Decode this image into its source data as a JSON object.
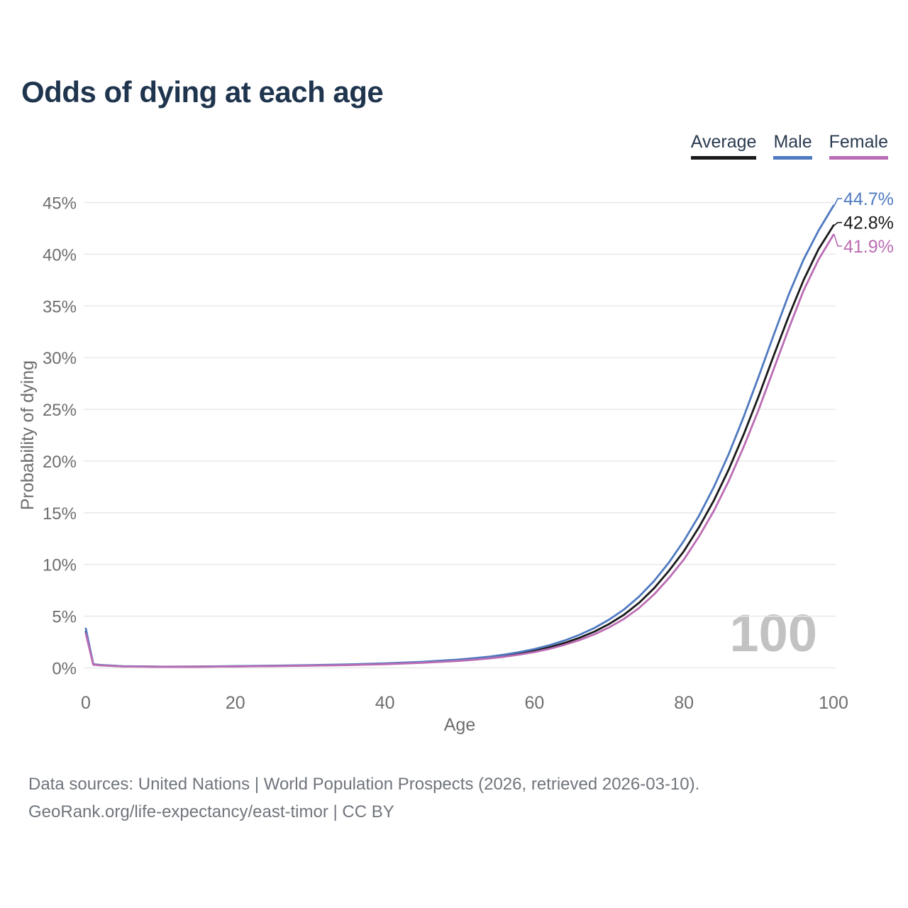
{
  "title": "Odds of dying at each age",
  "legend": {
    "items": [
      {
        "label": "Average",
        "color": "#1a1a1a"
      },
      {
        "label": "Male",
        "color": "#4f7ac0"
      },
      {
        "label": "Female",
        "color": "#bb6cb4"
      }
    ]
  },
  "watermark": "100",
  "sources": {
    "line1": "Data sources: United Nations | World Population Prospects (2026, retrieved 2026-03-10).",
    "line2": "GeoRank.org/life-expectancy/east-timor | CC BY"
  },
  "chart_data": {
    "type": "line",
    "title": "Odds of dying at each age",
    "xlabel": "Age",
    "ylabel": "Probability of dying",
    "xlim": [
      0,
      100
    ],
    "ylim_percent": [
      0,
      45
    ],
    "x_ticks": [
      0,
      20,
      40,
      60,
      80,
      100
    ],
    "y_ticks_percent": [
      0,
      5,
      10,
      15,
      20,
      25,
      30,
      35,
      40,
      45
    ],
    "grid": true,
    "legend_position": "top-right",
    "grid_color": "#e8e8e8",
    "axis_text_color": "#6e6e6e",
    "x": [
      0,
      1,
      2,
      5,
      10,
      15,
      20,
      25,
      30,
      35,
      40,
      45,
      50,
      52,
      54,
      56,
      58,
      60,
      62,
      64,
      66,
      68,
      70,
      72,
      74,
      76,
      78,
      80,
      82,
      84,
      86,
      88,
      90,
      92,
      94,
      96,
      98,
      100
    ],
    "series": [
      {
        "name": "Average",
        "color": "#1a1a1a",
        "end_label": "42.8%",
        "end_value_percent": 42.8,
        "values": [
          3.5,
          0.33,
          0.26,
          0.15,
          0.11,
          0.12,
          0.15,
          0.19,
          0.23,
          0.3,
          0.39,
          0.53,
          0.74,
          0.85,
          0.99,
          1.16,
          1.38,
          1.65,
          1.99,
          2.4,
          2.9,
          3.5,
          4.25,
          5.15,
          6.3,
          7.7,
          9.4,
          11.3,
          13.6,
          16.2,
          19.2,
          22.6,
          26.3,
          30.2,
          34.0,
          37.5,
          40.5,
          42.8
        ]
      },
      {
        "name": "Male",
        "color": "#4f7ac0",
        "end_label": "44.7%",
        "end_value_percent": 44.7,
        "values": [
          3.8,
          0.35,
          0.28,
          0.16,
          0.12,
          0.13,
          0.17,
          0.21,
          0.26,
          0.33,
          0.43,
          0.58,
          0.81,
          0.94,
          1.09,
          1.28,
          1.52,
          1.82,
          2.19,
          2.64,
          3.19,
          3.85,
          4.67,
          5.66,
          6.9,
          8.4,
          10.2,
          12.3,
          14.7,
          17.5,
          20.7,
          24.3,
          28.2,
          32.2,
          36.1,
          39.5,
          42.3,
          44.7
        ]
      },
      {
        "name": "Female",
        "color": "#bb6cb4",
        "end_label": "41.9%",
        "end_value_percent": 41.9,
        "values": [
          3.3,
          0.3,
          0.24,
          0.14,
          0.1,
          0.11,
          0.14,
          0.17,
          0.21,
          0.27,
          0.36,
          0.49,
          0.68,
          0.79,
          0.92,
          1.08,
          1.28,
          1.53,
          1.84,
          2.22,
          2.68,
          3.24,
          3.92,
          4.75,
          5.8,
          7.1,
          8.7,
          10.5,
          12.7,
          15.2,
          18.1,
          21.4,
          25.0,
          28.9,
          32.8,
          36.5,
          39.5,
          41.9
        ]
      }
    ]
  }
}
